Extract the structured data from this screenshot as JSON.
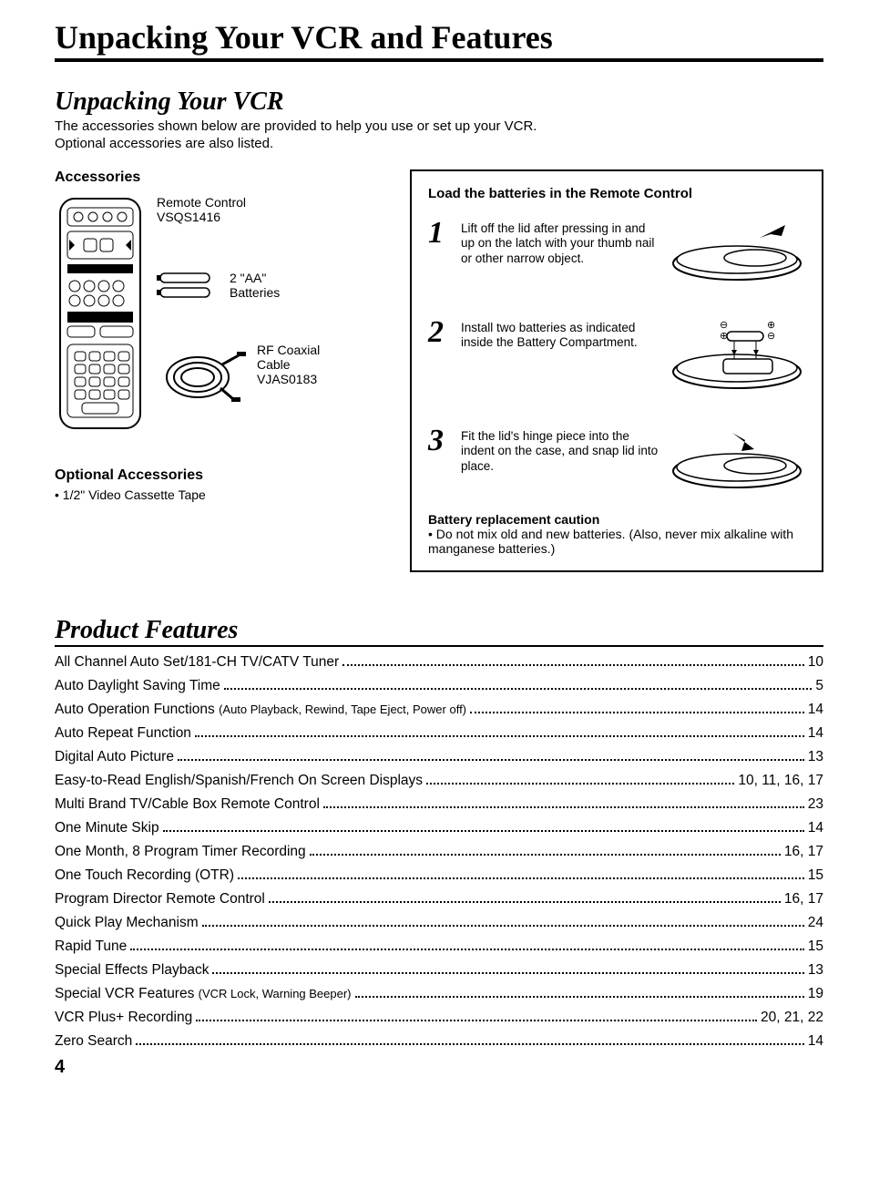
{
  "title": "Unpacking Your VCR and Features",
  "section1": {
    "heading": "Unpacking Your VCR",
    "intro": "The accessories shown below are provided to help you use or set up your VCR.\nOptional accessories are also listed.",
    "accessories_heading": "Accessories",
    "remote_label_1": "Remote Control",
    "remote_label_2": "VSQS1416",
    "batteries_label_1": "2 \"AA\"",
    "batteries_label_2": "Batteries",
    "cable_label_1": "RF Coaxial",
    "cable_label_2": "Cable",
    "cable_label_3": "VJAS0183",
    "optional_heading": "Optional Accessories",
    "optional_item": "1/2\" Video Cassette Tape"
  },
  "battery": {
    "title": "Load the batteries in the Remote Control",
    "steps": [
      {
        "n": "1",
        "text": "Lift off the lid after pressing in and up on the latch with your thumb nail or other narrow object."
      },
      {
        "n": "2",
        "text": "Install two batteries as indicated inside the Battery Compartment."
      },
      {
        "n": "3",
        "text": "Fit the lid's hinge piece into the indent on the case, and snap lid into place."
      }
    ],
    "caution_title": "Battery replacement caution",
    "caution_text": "Do not mix old and new batteries. (Also, never mix alkaline with manganese batteries.)"
  },
  "features": {
    "heading": "Product Features",
    "items": [
      {
        "label": "All Channel Auto Set/181-CH TV/CATV Tuner",
        "sub": "",
        "page": "10"
      },
      {
        "label": "Auto Daylight Saving Time",
        "sub": "",
        "page": "5"
      },
      {
        "label": "Auto Operation Functions ",
        "sub": "(Auto Playback, Rewind, Tape Eject, Power off)",
        "page": "14"
      },
      {
        "label": "Auto Repeat Function",
        "sub": "",
        "page": "14"
      },
      {
        "label": "Digital Auto Picture",
        "sub": "",
        "page": "13"
      },
      {
        "label": "Easy-to-Read English/Spanish/French On Screen Displays",
        "sub": "",
        "page": "10, 11, 16, 17"
      },
      {
        "label": "Multi Brand TV/Cable Box Remote Control",
        "sub": "",
        "page": "23"
      },
      {
        "label": "One Minute Skip",
        "sub": "",
        "page": "14"
      },
      {
        "label": "One Month, 8 Program Timer Recording",
        "sub": "",
        "page": "16, 17"
      },
      {
        "label": "One Touch Recording (OTR)",
        "sub": "",
        "page": "15"
      },
      {
        "label": "Program Director Remote Control",
        "sub": "",
        "page": "16, 17"
      },
      {
        "label": "Quick Play Mechanism",
        "sub": "",
        "page": "24"
      },
      {
        "label": "Rapid Tune",
        "sub": "",
        "page": "15"
      },
      {
        "label": "Special Effects Playback",
        "sub": "",
        "page": "13"
      },
      {
        "label": "Special VCR Features ",
        "sub": "(VCR Lock, Warning Beeper)",
        "page": "19"
      },
      {
        "label": "VCR Plus+ Recording",
        "sub": "",
        "page": "20, 21, 22"
      },
      {
        "label": "Zero Search",
        "sub": "",
        "page": "14"
      }
    ]
  },
  "page_number": "4",
  "colors": {
    "fg": "#000000",
    "bg": "#ffffff"
  }
}
